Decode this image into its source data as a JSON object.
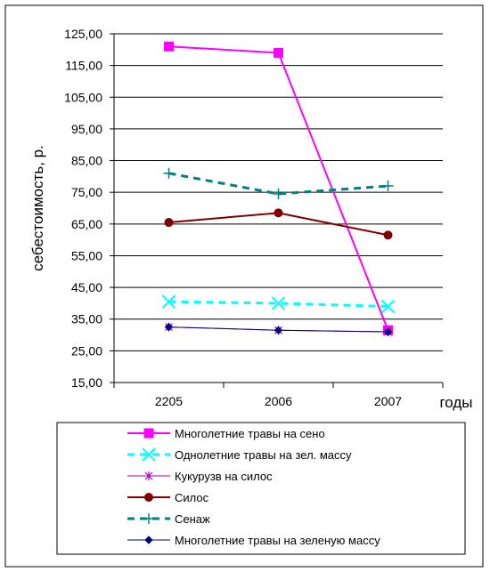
{
  "chart_data": {
    "type": "line",
    "title": "",
    "xlabel": "годы",
    "ylabel": "себестоимость, р.",
    "categories": [
      "2205",
      "2006",
      "2007"
    ],
    "ylim": [
      15,
      125
    ],
    "yticks": [
      "15,00",
      "25,00",
      "35,00",
      "45,00",
      "55,00",
      "65,00",
      "75,00",
      "85,00",
      "95,00",
      "105,00",
      "115,00",
      "125,00"
    ],
    "grid": "horizontal",
    "legend_position": "bottom",
    "series": [
      {
        "name": "Многолетние травы на сено",
        "values": [
          121,
          119,
          31.5
        ],
        "color": "#ff00ff",
        "marker": "square",
        "dash": "solid",
        "width": 2
      },
      {
        "name": "Однолетние травы на зел. массу",
        "values": [
          40.5,
          40,
          39
        ],
        "color": "#00ffff",
        "marker": "x",
        "dash": "dashed",
        "width": 3
      },
      {
        "name": "Кукурузв на силос",
        "values": [
          32.5,
          31.5,
          31
        ],
        "color": "#b000b0",
        "marker": "asterisk",
        "dash": "solid",
        "width": 1
      },
      {
        "name": "Силос",
        "values": [
          65.5,
          68.5,
          61.5
        ],
        "color": "#800000",
        "marker": "circle",
        "dash": "solid",
        "width": 2
      },
      {
        "name": "Сенаж",
        "values": [
          81,
          74.5,
          77
        ],
        "color": "#008080",
        "marker": "plus",
        "dash": "dashed",
        "width": 3
      },
      {
        "name": "Многолетние травы на зеленую массу",
        "values": [
          32.5,
          31.5,
          31
        ],
        "color": "#000080",
        "marker": "diamond",
        "dash": "solid",
        "width": 1
      }
    ]
  }
}
